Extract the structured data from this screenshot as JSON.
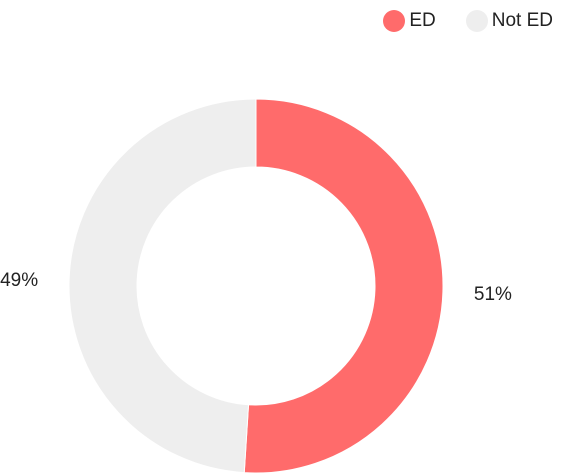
{
  "chart_data": {
    "type": "pie",
    "variant": "donut",
    "title": "",
    "legend_position": "top-right",
    "slices": [
      {
        "label": "ED",
        "value": 51,
        "display": "51%",
        "color": "#ff6b6b"
      },
      {
        "label": "Not ED",
        "value": 49,
        "display": "49%",
        "color": "#eeeeee"
      }
    ]
  }
}
